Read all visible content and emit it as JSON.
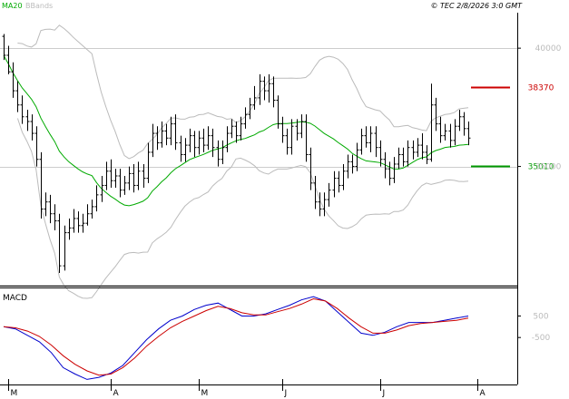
{
  "chart_data": {
    "type": "ohlc",
    "header": {
      "legend": [
        {
          "name": "MA20",
          "color": "#00aa00"
        },
        {
          "name": "BBands",
          "color": "#bbbbbb"
        }
      ],
      "copyright": "© TEC 2/8/2026 3:0 GMT"
    },
    "price_panel": {
      "ylim": [
        30000,
        41500
      ],
      "y_ticks": [
        {
          "value": 40000,
          "label": "40000"
        },
        {
          "value": 35000,
          "label": "35000"
        }
      ],
      "gridlines": [
        40000,
        35000,
        30000
      ],
      "levels": [
        {
          "value": 38370,
          "label": "38370",
          "color": "#cc0000"
        },
        {
          "value": 35010,
          "label": "35010",
          "color": "#009900"
        }
      ]
    },
    "macd_panel": {
      "title": "MACD",
      "ylim": [
        -2600,
        1700
      ],
      "y_ticks": [
        {
          "value": 500,
          "label": "500"
        },
        {
          "value": -500,
          "label": "-500"
        }
      ],
      "series": [
        {
          "name": "",
          "color": "#0000cc",
          "values": [
            0,
            -100,
            -400,
            -700,
            -1200,
            -1900,
            -2200,
            -2450,
            -2350,
            -2150,
            -1800,
            -1200,
            -600,
            -100,
            300,
            500,
            800,
            1000,
            1100,
            800,
            500,
            500,
            600,
            800,
            1000,
            1250,
            1400,
            1200,
            700,
            200,
            -300,
            -400,
            -250,
            0,
            200,
            200,
            200,
            300,
            400,
            500
          ]
        },
        {
          "name": "",
          "color": "#cc0000",
          "values": [
            0,
            -50,
            -200,
            -450,
            -850,
            -1350,
            -1750,
            -2050,
            -2250,
            -2200,
            -1900,
            -1450,
            -900,
            -450,
            -50,
            250,
            500,
            750,
            950,
            850,
            650,
            550,
            550,
            700,
            850,
            1050,
            1300,
            1200,
            850,
            400,
            0,
            -300,
            -300,
            -150,
            50,
            150,
            200,
            250,
            300,
            400
          ]
        }
      ]
    },
    "x_axis": {
      "ticks": [
        {
          "index": 1,
          "label": "M"
        },
        {
          "index": 23,
          "label": "A"
        },
        {
          "index": 42,
          "label": "M"
        },
        {
          "index": 60,
          "label": "J"
        },
        {
          "index": 81,
          "label": "J"
        },
        {
          "index": 102,
          "label": "A"
        }
      ]
    },
    "bars": [
      [
        40500,
        39700,
        40600,
        39500
      ],
      [
        39700,
        39000,
        40100,
        38900
      ],
      [
        39000,
        38200,
        39400,
        37900
      ],
      [
        38200,
        37600,
        38600,
        37300
      ],
      [
        37600,
        37100,
        38000,
        36800
      ],
      [
        37100,
        36900,
        37400,
        36500
      ],
      [
        36900,
        36400,
        37200,
        36100
      ],
      [
        36400,
        35300,
        36700,
        35000
      ],
      [
        35300,
        33200,
        35600,
        32800
      ],
      [
        33200,
        33500,
        33900,
        32900
      ],
      [
        33500,
        33000,
        33800,
        32600
      ],
      [
        33000,
        32700,
        33400,
        32300
      ],
      [
        32700,
        30800,
        33000,
        30500
      ],
      [
        30800,
        32200,
        32500,
        30600
      ],
      [
        32200,
        32400,
        32800,
        31900
      ],
      [
        32400,
        32800,
        33200,
        32200
      ],
      [
        32800,
        32500,
        33100,
        32200
      ],
      [
        32500,
        32600,
        33000,
        32200
      ],
      [
        32600,
        33000,
        33400,
        32500
      ],
      [
        33000,
        33300,
        33600,
        32800
      ],
      [
        33300,
        33800,
        34200,
        33100
      ],
      [
        33800,
        34200,
        34600,
        33500
      ],
      [
        34200,
        34800,
        35200,
        34000
      ],
      [
        34800,
        34400,
        35300,
        34100
      ],
      [
        34400,
        34600,
        34900,
        34100
      ],
      [
        34600,
        34000,
        34900,
        33700
      ],
      [
        34000,
        34300,
        34600,
        33800
      ],
      [
        34300,
        34700,
        35000,
        34000
      ],
      [
        34700,
        34200,
        35100,
        33900
      ],
      [
        34200,
        34800,
        35200,
        34000
      ],
      [
        34800,
        34500,
        35100,
        34100
      ],
      [
        34500,
        35600,
        36000,
        34300
      ],
      [
        35600,
        36400,
        36800,
        35400
      ],
      [
        36400,
        36000,
        36700,
        35700
      ],
      [
        36000,
        36500,
        36900,
        35800
      ],
      [
        36500,
        36200,
        36800,
        35900
      ],
      [
        36200,
        36800,
        37100,
        35900
      ],
      [
        36800,
        36000,
        37200,
        35700
      ],
      [
        36000,
        35500,
        36300,
        35200
      ],
      [
        35500,
        35900,
        36200,
        35200
      ],
      [
        35900,
        36300,
        36600,
        35600
      ],
      [
        36300,
        35800,
        36500,
        35400
      ],
      [
        35800,
        36200,
        36500,
        35500
      ],
      [
        36200,
        35900,
        36600,
        35600
      ],
      [
        35900,
        36300,
        36700,
        35700
      ],
      [
        36300,
        35800,
        36600,
        35400
      ],
      [
        35800,
        35300,
        36100,
        35000
      ],
      [
        35300,
        35800,
        36100,
        35100
      ],
      [
        35800,
        36400,
        36700,
        35600
      ],
      [
        36400,
        36700,
        37000,
        36200
      ],
      [
        36700,
        36300,
        36900,
        36000
      ],
      [
        36300,
        36800,
        37100,
        36100
      ],
      [
        36800,
        37200,
        37500,
        36600
      ],
      [
        37200,
        37600,
        37900,
        37000
      ],
      [
        37600,
        37900,
        38400,
        37400
      ],
      [
        37900,
        38600,
        38900,
        37600
      ],
      [
        38600,
        38200,
        38800,
        37800
      ],
      [
        38200,
        38500,
        38900,
        37700
      ],
      [
        38500,
        37800,
        38800,
        37500
      ],
      [
        37800,
        36800,
        38000,
        36600
      ],
      [
        36800,
        36300,
        37100,
        36000
      ],
      [
        36300,
        35800,
        36600,
        35500
      ],
      [
        35800,
        36700,
        37000,
        35500
      ],
      [
        36700,
        36400,
        37000,
        36100
      ],
      [
        36400,
        36900,
        37200,
        36200
      ],
      [
        36900,
        35500,
        37200,
        35200
      ],
      [
        35500,
        34300,
        35800,
        34000
      ],
      [
        34300,
        33500,
        34600,
        33200
      ],
      [
        33500,
        33200,
        33900,
        32900
      ],
      [
        33200,
        33600,
        33900,
        32900
      ],
      [
        33600,
        34000,
        34300,
        33300
      ],
      [
        34000,
        34500,
        34800,
        33700
      ],
      [
        34500,
        34200,
        34800,
        33900
      ],
      [
        34200,
        34800,
        35100,
        34000
      ],
      [
        34800,
        35200,
        35500,
        34500
      ],
      [
        35200,
        35000,
        35500,
        34700
      ],
      [
        35000,
        35700,
        36000,
        34800
      ],
      [
        35700,
        36300,
        36600,
        35500
      ],
      [
        36300,
        36000,
        36700,
        35800
      ],
      [
        36000,
        36400,
        36700,
        35600
      ],
      [
        36400,
        35800,
        36700,
        35400
      ],
      [
        35800,
        35300,
        36100,
        35000
      ],
      [
        35300,
        34900,
        35600,
        34500
      ],
      [
        34900,
        34500,
        35200,
        34200
      ],
      [
        34500,
        35100,
        35400,
        34300
      ],
      [
        35100,
        35500,
        35800,
        34900
      ],
      [
        35500,
        35200,
        35800,
        35000
      ],
      [
        35200,
        35800,
        36100,
        35000
      ],
      [
        35800,
        35600,
        36100,
        35300
      ],
      [
        35600,
        35900,
        36200,
        35400
      ],
      [
        35900,
        35600,
        36400,
        35300
      ],
      [
        35600,
        35300,
        35900,
        35100
      ],
      [
        35300,
        37600,
        38500,
        35200
      ],
      [
        37600,
        36800,
        37900,
        36500
      ],
      [
        36800,
        36300,
        37100,
        36000
      ],
      [
        36300,
        36500,
        36800,
        36100
      ],
      [
        36500,
        36100,
        36800,
        35800
      ],
      [
        36100,
        36700,
        37000,
        35900
      ],
      [
        36700,
        37100,
        37400,
        36500
      ],
      [
        37100,
        36600,
        37300,
        36300
      ],
      [
        36600,
        36200,
        36900,
        35900
      ]
    ]
  }
}
